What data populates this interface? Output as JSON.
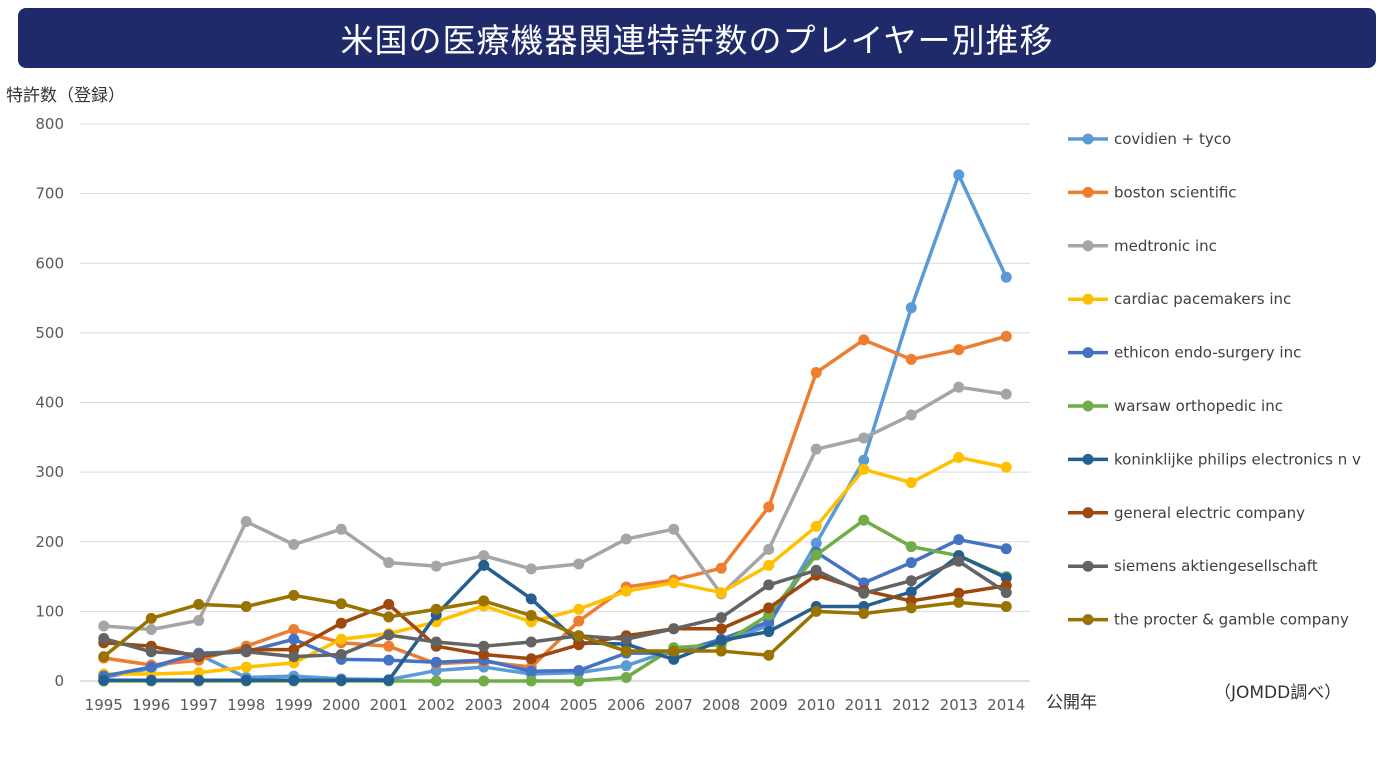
{
  "title": "米国の医療機器関連特許数のプレイヤー別推移",
  "source_note": "（JOMDD調べ）",
  "chart_data": {
    "type": "line",
    "ylabel": "特許数（登録）",
    "xlabel": "公開年",
    "ylim": [
      0,
      800
    ],
    "yticks": [
      0,
      100,
      200,
      300,
      400,
      500,
      600,
      700,
      800
    ],
    "grid": true,
    "legend_position": "right",
    "categories": [
      "1995",
      "1996",
      "1997",
      "1998",
      "1999",
      "2000",
      "2001",
      "2002",
      "2003",
      "2004",
      "2005",
      "2006",
      "2007",
      "2008",
      "2009",
      "2010",
      "2011",
      "2012",
      "2013",
      "2014"
    ],
    "series": [
      {
        "name": "covidien + tyco",
        "color": "#5b9bd5",
        "values": [
          5,
          18,
          38,
          5,
          7,
          3,
          2,
          15,
          20,
          10,
          12,
          22,
          45,
          55,
          80,
          198,
          317,
          536,
          727,
          580
        ]
      },
      {
        "name": "boston scientific",
        "color": "#ed7d31",
        "values": [
          33,
          23,
          30,
          50,
          74,
          55,
          50,
          25,
          28,
          20,
          86,
          135,
          145,
          162,
          250,
          443,
          490,
          462,
          476,
          495
        ]
      },
      {
        "name": "medtronic inc",
        "color": "#a5a5a5",
        "values": [
          79,
          74,
          87,
          229,
          196,
          218,
          170,
          165,
          180,
          161,
          168,
          204,
          218,
          125,
          189,
          333,
          349,
          382,
          422,
          412
        ]
      },
      {
        "name": "cardiac pacemakers inc",
        "color": "#ffc000",
        "values": [
          10,
          10,
          12,
          20,
          26,
          60,
          68,
          85,
          108,
          85,
          103,
          129,
          141,
          127,
          166,
          222,
          304,
          285,
          321,
          307
        ]
      },
      {
        "name": "ethicon endo-surgery inc",
        "color": "#4472c4",
        "values": [
          7,
          20,
          40,
          42,
          60,
          31,
          30,
          27,
          30,
          14,
          15,
          40,
          40,
          60,
          85,
          185,
          141,
          170,
          203,
          190
        ]
      },
      {
        "name": "warsaw orthopedic inc",
        "color": "#70ad47",
        "values": [
          0,
          0,
          0,
          0,
          0,
          0,
          0,
          0,
          0,
          0,
          0,
          5,
          48,
          52,
          95,
          181,
          231,
          193,
          180,
          150
        ]
      },
      {
        "name": "koninklijke philips electronics n v",
        "color": "#255e91",
        "values": [
          1,
          1,
          1,
          1,
          1,
          1,
          1,
          95,
          166,
          118,
          55,
          53,
          31,
          58,
          71,
          107,
          107,
          128,
          180,
          148
        ]
      },
      {
        "name": "general electric company",
        "color": "#9e480e",
        "values": [
          55,
          50,
          35,
          45,
          45,
          83,
          110,
          50,
          38,
          32,
          52,
          65,
          75,
          75,
          105,
          152,
          130,
          115,
          126,
          137
        ]
      },
      {
        "name": "siemens aktiengesellschaft",
        "color": "#636363",
        "values": [
          61,
          42,
          38,
          42,
          35,
          38,
          66,
          56,
          50,
          56,
          65,
          60,
          75,
          91,
          138,
          159,
          126,
          144,
          172,
          127
        ]
      },
      {
        "name": "the procter & gamble company",
        "color": "#997300",
        "values": [
          35,
          90,
          110,
          107,
          123,
          111,
          92,
          103,
          115,
          94,
          65,
          43,
          43,
          43,
          37,
          100,
          97,
          105,
          113,
          107
        ]
      }
    ]
  }
}
